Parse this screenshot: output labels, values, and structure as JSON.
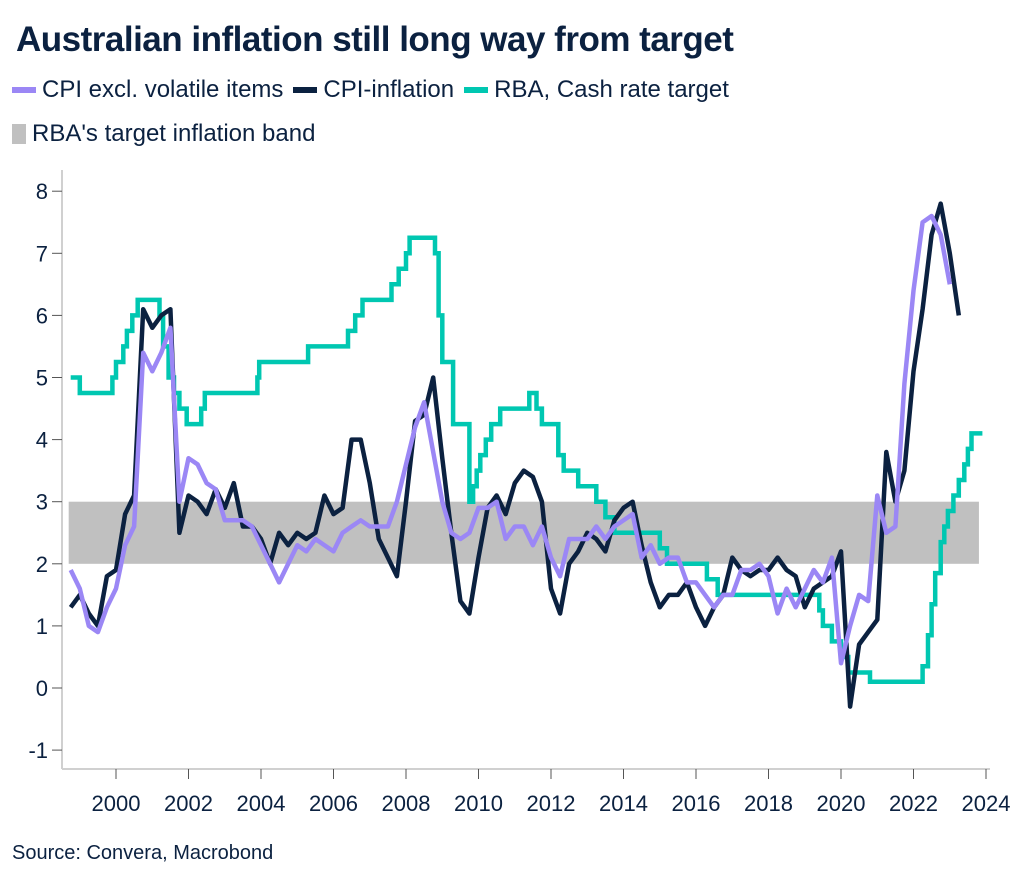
{
  "chart_data": {
    "type": "line",
    "title": "Australian inflation still long way from target",
    "source": "Source: Convera, Macrobond",
    "xlabel": "",
    "ylabel": "",
    "ylim": [
      -1.3,
      8.3
    ],
    "xlim": [
      1998.6,
      2024.1
    ],
    "yticks": [
      8,
      7,
      6,
      5,
      4,
      3,
      2,
      1,
      0,
      -1
    ],
    "xticks": [
      2000,
      2002,
      2004,
      2006,
      2008,
      2010,
      2012,
      2014,
      2016,
      2018,
      2020,
      2022,
      2024
    ],
    "grid": false,
    "legend_placement": "top",
    "legend": [
      {
        "label": "CPI excl. volatile items",
        "color": "#9b87f5",
        "kind": "line"
      },
      {
        "label": "CPI-inflation",
        "color": "#0b2140",
        "kind": "line"
      },
      {
        "label": "RBA, Cash rate target",
        "color": "#00c7b1",
        "kind": "line"
      },
      {
        "label": "RBA's target inflation band",
        "color": "#c0c0c0",
        "kind": "band"
      }
    ],
    "band": {
      "name": "RBA's target inflation band",
      "from": 2,
      "to": 3,
      "x_start": 1998.75,
      "x_end": 2023.75,
      "color": "#c0c0c0"
    },
    "series": [
      {
        "name": "RBA, Cash rate target",
        "color": "#00c7b1",
        "step": true,
        "x": [
          1998.75,
          1999.0,
          1999.9,
          2000.0,
          2000.2,
          2000.3,
          2000.45,
          2000.6,
          2000.8,
          2001.2,
          2001.3,
          2001.45,
          2001.6,
          2001.75,
          2001.95,
          2002.35,
          2002.45,
          2003.9,
          2003.95,
          2005.3,
          2006.4,
          2006.6,
          2006.8,
          2007.6,
          2007.8,
          2007.9,
          2008.0,
          2008.1,
          2008.7,
          2008.8,
          2008.9,
          2009.0,
          2009.3,
          2009.75,
          2009.85,
          2009.95,
          2010.05,
          2010.2,
          2010.35,
          2010.6,
          2011.4,
          2011.6,
          2011.75,
          2012.2,
          2012.35,
          2012.5,
          2012.75,
          2013.25,
          2013.5,
          2013.75,
          2015.0,
          2015.2,
          2015.4,
          2016.3,
          2016.6,
          2018.2,
          2019.4,
          2019.5,
          2019.75,
          2020.0,
          2020.2,
          2020.8,
          2022.25,
          2022.4,
          2022.5,
          2022.6,
          2022.75,
          2022.85,
          2022.95,
          2023.1,
          2023.25,
          2023.4,
          2023.5,
          2023.6
        ],
        "values": [
          5.0,
          4.75,
          5.0,
          5.25,
          5.5,
          5.75,
          6.0,
          6.25,
          6.25,
          6.0,
          5.5,
          5.0,
          4.75,
          4.5,
          4.25,
          4.5,
          4.75,
          5.0,
          5.25,
          5.5,
          5.75,
          6.0,
          6.25,
          6.5,
          6.75,
          6.75,
          7.0,
          7.25,
          7.25,
          7.0,
          6.0,
          5.25,
          4.25,
          3.0,
          3.25,
          3.5,
          3.75,
          4.0,
          4.25,
          4.5,
          4.75,
          4.5,
          4.25,
          3.75,
          3.5,
          3.5,
          3.25,
          3.0,
          2.75,
          2.5,
          2.25,
          2.0,
          2.0,
          1.75,
          1.5,
          1.5,
          1.25,
          1.0,
          0.75,
          0.5,
          0.25,
          0.1,
          0.35,
          0.85,
          1.35,
          1.85,
          2.35,
          2.6,
          2.85,
          3.1,
          3.35,
          3.6,
          3.85,
          4.1
        ]
      },
      {
        "name": "CPI-inflation",
        "color": "#0b2140",
        "x_start": 1998.75,
        "x_step": 0.25,
        "values": [
          1.3,
          1.5,
          1.2,
          1.0,
          1.8,
          1.9,
          2.8,
          3.1,
          6.1,
          5.8,
          6.0,
          6.1,
          2.5,
          3.1,
          3.0,
          2.8,
          3.2,
          2.9,
          3.3,
          2.6,
          2.6,
          2.4,
          2.0,
          2.5,
          2.3,
          2.5,
          2.4,
          2.5,
          3.1,
          2.8,
          2.9,
          4.0,
          4.0,
          3.3,
          2.4,
          2.1,
          1.8,
          3.0,
          4.3,
          4.4,
          5.0,
          3.7,
          2.5,
          1.4,
          1.2,
          2.1,
          2.9,
          3.1,
          2.8,
          3.3,
          3.5,
          3.4,
          3.0,
          1.6,
          1.2,
          2.0,
          2.2,
          2.5,
          2.4,
          2.2,
          2.7,
          2.9,
          3.0,
          2.3,
          1.7,
          1.3,
          1.5,
          1.5,
          1.7,
          1.3,
          1.0,
          1.3,
          1.5,
          2.1,
          1.9,
          1.8,
          1.9,
          1.9,
          2.1,
          1.9,
          1.8,
          1.3,
          1.6,
          1.7,
          1.8,
          2.2,
          -0.3,
          0.7,
          0.9,
          1.1,
          3.8,
          3.0,
          3.5,
          5.1,
          6.1,
          7.3,
          7.8,
          7.0,
          6.0
        ]
      },
      {
        "name": "CPI excl. volatile items",
        "color": "#9b87f5",
        "x_start": 1998.75,
        "x_step": 0.25,
        "values": [
          1.9,
          1.6,
          1.0,
          0.9,
          1.3,
          1.6,
          2.3,
          2.6,
          5.4,
          5.1,
          5.4,
          5.8,
          3.0,
          3.7,
          3.6,
          3.3,
          3.2,
          2.7,
          2.7,
          2.7,
          2.6,
          2.3,
          2.0,
          1.7,
          2.0,
          2.3,
          2.2,
          2.4,
          2.3,
          2.2,
          2.5,
          2.6,
          2.7,
          2.6,
          2.6,
          2.6,
          3.0,
          3.6,
          4.2,
          4.6,
          3.8,
          3.0,
          2.5,
          2.4,
          2.5,
          2.9,
          2.9,
          3.0,
          2.4,
          2.6,
          2.6,
          2.3,
          2.6,
          2.1,
          1.8,
          2.4,
          2.4,
          2.4,
          2.6,
          2.4,
          2.6,
          2.7,
          2.8,
          2.1,
          2.3,
          2.0,
          2.1,
          2.1,
          1.7,
          1.7,
          1.5,
          1.3,
          1.5,
          1.5,
          1.9,
          1.9,
          2.0,
          1.8,
          1.2,
          1.6,
          1.3,
          1.6,
          1.9,
          1.7,
          2.1,
          0.4,
          1.0,
          1.5,
          1.4,
          3.1,
          2.5,
          2.6,
          4.9,
          6.4,
          7.5,
          7.6,
          7.3,
          6.5
        ]
      }
    ]
  }
}
